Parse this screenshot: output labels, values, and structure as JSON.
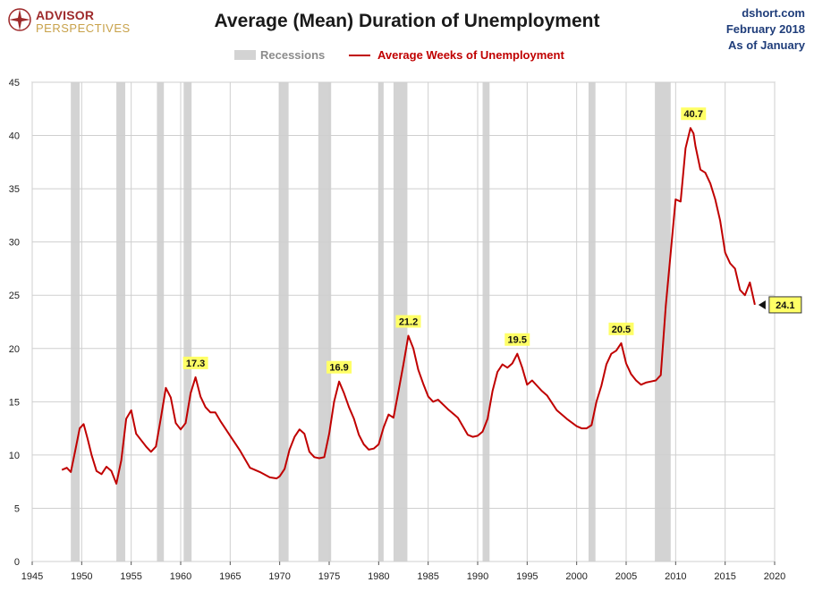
{
  "header": {
    "logo_line1": "ADVISOR",
    "logo_line2": "PERSPECTIVES",
    "title": "Average (Mean) Duration of Unemployment",
    "source_line1": "dshort.com",
    "source_line2": "February 2018",
    "source_line3": "As of January"
  },
  "legend": {
    "recessions_label": "Recessions",
    "series_label": "Average Weeks of Unemployment"
  },
  "colors": {
    "series": "#c00000",
    "recession": "#d3d3d3",
    "gridline": "#cfcfcf",
    "annotation_fill": "#ffff66",
    "title": "#1a1a1a",
    "source": "#1f3d7a"
  },
  "chart_data": {
    "type": "line",
    "title": "Average (Mean) Duration of Unemployment",
    "xlim": [
      1945,
      2020
    ],
    "ylim": [
      0,
      45
    ],
    "x_ticks": [
      1945,
      1950,
      1955,
      1960,
      1965,
      1970,
      1975,
      1980,
      1985,
      1990,
      1995,
      2000,
      2005,
      2010,
      2015,
      2020
    ],
    "y_ticks": [
      0,
      5,
      10,
      15,
      20,
      25,
      30,
      35,
      40,
      45
    ],
    "grid": true,
    "recessions": [
      [
        1948.9,
        1949.8
      ],
      [
        1953.5,
        1954.4
      ],
      [
        1957.6,
        1958.3
      ],
      [
        1960.3,
        1961.1
      ],
      [
        1969.9,
        1970.9
      ],
      [
        1973.9,
        1975.2
      ],
      [
        1980.0,
        1980.5
      ],
      [
        1981.5,
        1982.9
      ],
      [
        1990.5,
        1991.2
      ],
      [
        2001.2,
        2001.9
      ],
      [
        2007.9,
        2009.5
      ]
    ],
    "series": [
      {
        "name": "Average Weeks of Unemployment",
        "x": [
          1948.0,
          1948.5,
          1948.9,
          1949.3,
          1949.8,
          1950.2,
          1950.6,
          1951.0,
          1951.5,
          1952.0,
          1952.5,
          1953.0,
          1953.5,
          1954.0,
          1954.5,
          1955.0,
          1955.5,
          1956.0,
          1956.5,
          1957.0,
          1957.5,
          1958.0,
          1958.5,
          1959.0,
          1959.5,
          1960.0,
          1960.5,
          1961.0,
          1961.5,
          1962.0,
          1962.5,
          1963.0,
          1963.5,
          1964.0,
          1965.0,
          1966.0,
          1967.0,
          1968.0,
          1969.0,
          1969.7,
          1970.0,
          1970.5,
          1971.0,
          1971.5,
          1972.0,
          1972.5,
          1973.0,
          1973.5,
          1974.0,
          1974.5,
          1975.0,
          1975.5,
          1976.0,
          1976.5,
          1977.0,
          1977.5,
          1978.0,
          1978.5,
          1979.0,
          1979.5,
          1980.0,
          1980.5,
          1981.0,
          1981.5,
          1982.0,
          1982.5,
          1983.0,
          1983.5,
          1984.0,
          1984.5,
          1985.0,
          1985.5,
          1986.0,
          1987.0,
          1988.0,
          1989.0,
          1989.5,
          1990.0,
          1990.5,
          1991.0,
          1991.5,
          1992.0,
          1992.5,
          1993.0,
          1993.5,
          1994.0,
          1994.5,
          1995.0,
          1995.5,
          1996.0,
          1996.5,
          1997.0,
          1998.0,
          1999.0,
          2000.0,
          2000.5,
          2001.0,
          2001.5,
          2002.0,
          2002.5,
          2003.0,
          2003.5,
          2004.0,
          2004.5,
          2005.0,
          2005.5,
          2006.0,
          2006.5,
          2007.0,
          2007.5,
          2008.0,
          2008.5,
          2009.0,
          2009.5,
          2010.0,
          2010.5,
          2011.0,
          2011.5,
          2011.8,
          2012.0,
          2012.5,
          2013.0,
          2013.5,
          2014.0,
          2014.5,
          2015.0,
          2015.5,
          2016.0,
          2016.5,
          2017.0,
          2017.5,
          2018.0
        ],
        "values": [
          8.6,
          8.8,
          8.4,
          10.2,
          12.5,
          12.9,
          11.5,
          10.0,
          8.5,
          8.2,
          8.9,
          8.5,
          7.3,
          9.5,
          13.4,
          14.2,
          12.0,
          11.4,
          10.8,
          10.3,
          10.8,
          13.5,
          16.3,
          15.4,
          13.0,
          12.4,
          13.0,
          15.8,
          17.3,
          15.5,
          14.5,
          14.0,
          14.0,
          13.2,
          11.8,
          10.4,
          8.8,
          8.4,
          7.9,
          7.8,
          8.0,
          8.7,
          10.5,
          11.7,
          12.4,
          12.0,
          10.3,
          9.8,
          9.7,
          9.8,
          12.0,
          15.0,
          16.9,
          15.8,
          14.5,
          13.4,
          11.9,
          11.0,
          10.5,
          10.6,
          11.0,
          12.6,
          13.8,
          13.5,
          16.0,
          18.5,
          21.2,
          20.0,
          18.0,
          16.7,
          15.5,
          15.0,
          15.2,
          14.3,
          13.5,
          11.9,
          11.7,
          11.8,
          12.2,
          13.4,
          16.0,
          17.8,
          18.5,
          18.2,
          18.6,
          19.5,
          18.2,
          16.6,
          17.0,
          16.5,
          16.0,
          15.6,
          14.2,
          13.4,
          12.7,
          12.5,
          12.5,
          12.8,
          15.0,
          16.5,
          18.5,
          19.5,
          19.8,
          20.5,
          18.6,
          17.6,
          17.0,
          16.6,
          16.8,
          16.9,
          17.0,
          17.5,
          24.0,
          29.0,
          34.0,
          33.8,
          38.8,
          40.7,
          40.2,
          39.0,
          36.8,
          36.5,
          35.5,
          34.0,
          32.0,
          29.0,
          28.0,
          27.5,
          25.5,
          25.0,
          26.2,
          24.1
        ]
      }
    ],
    "annotations": [
      {
        "x": 1961.5,
        "y": 17.3,
        "label": "17.3"
      },
      {
        "x": 1976.0,
        "y": 16.9,
        "label": "16.9"
      },
      {
        "x": 1983.0,
        "y": 21.2,
        "label": "21.2"
      },
      {
        "x": 1994.0,
        "y": 19.5,
        "label": "19.5"
      },
      {
        "x": 2004.5,
        "y": 20.5,
        "label": "20.5"
      },
      {
        "x": 2011.8,
        "y": 40.7,
        "label": "40.7"
      }
    ],
    "last_value": {
      "x": 2018.0,
      "y": 24.1,
      "label": "24.1"
    }
  }
}
